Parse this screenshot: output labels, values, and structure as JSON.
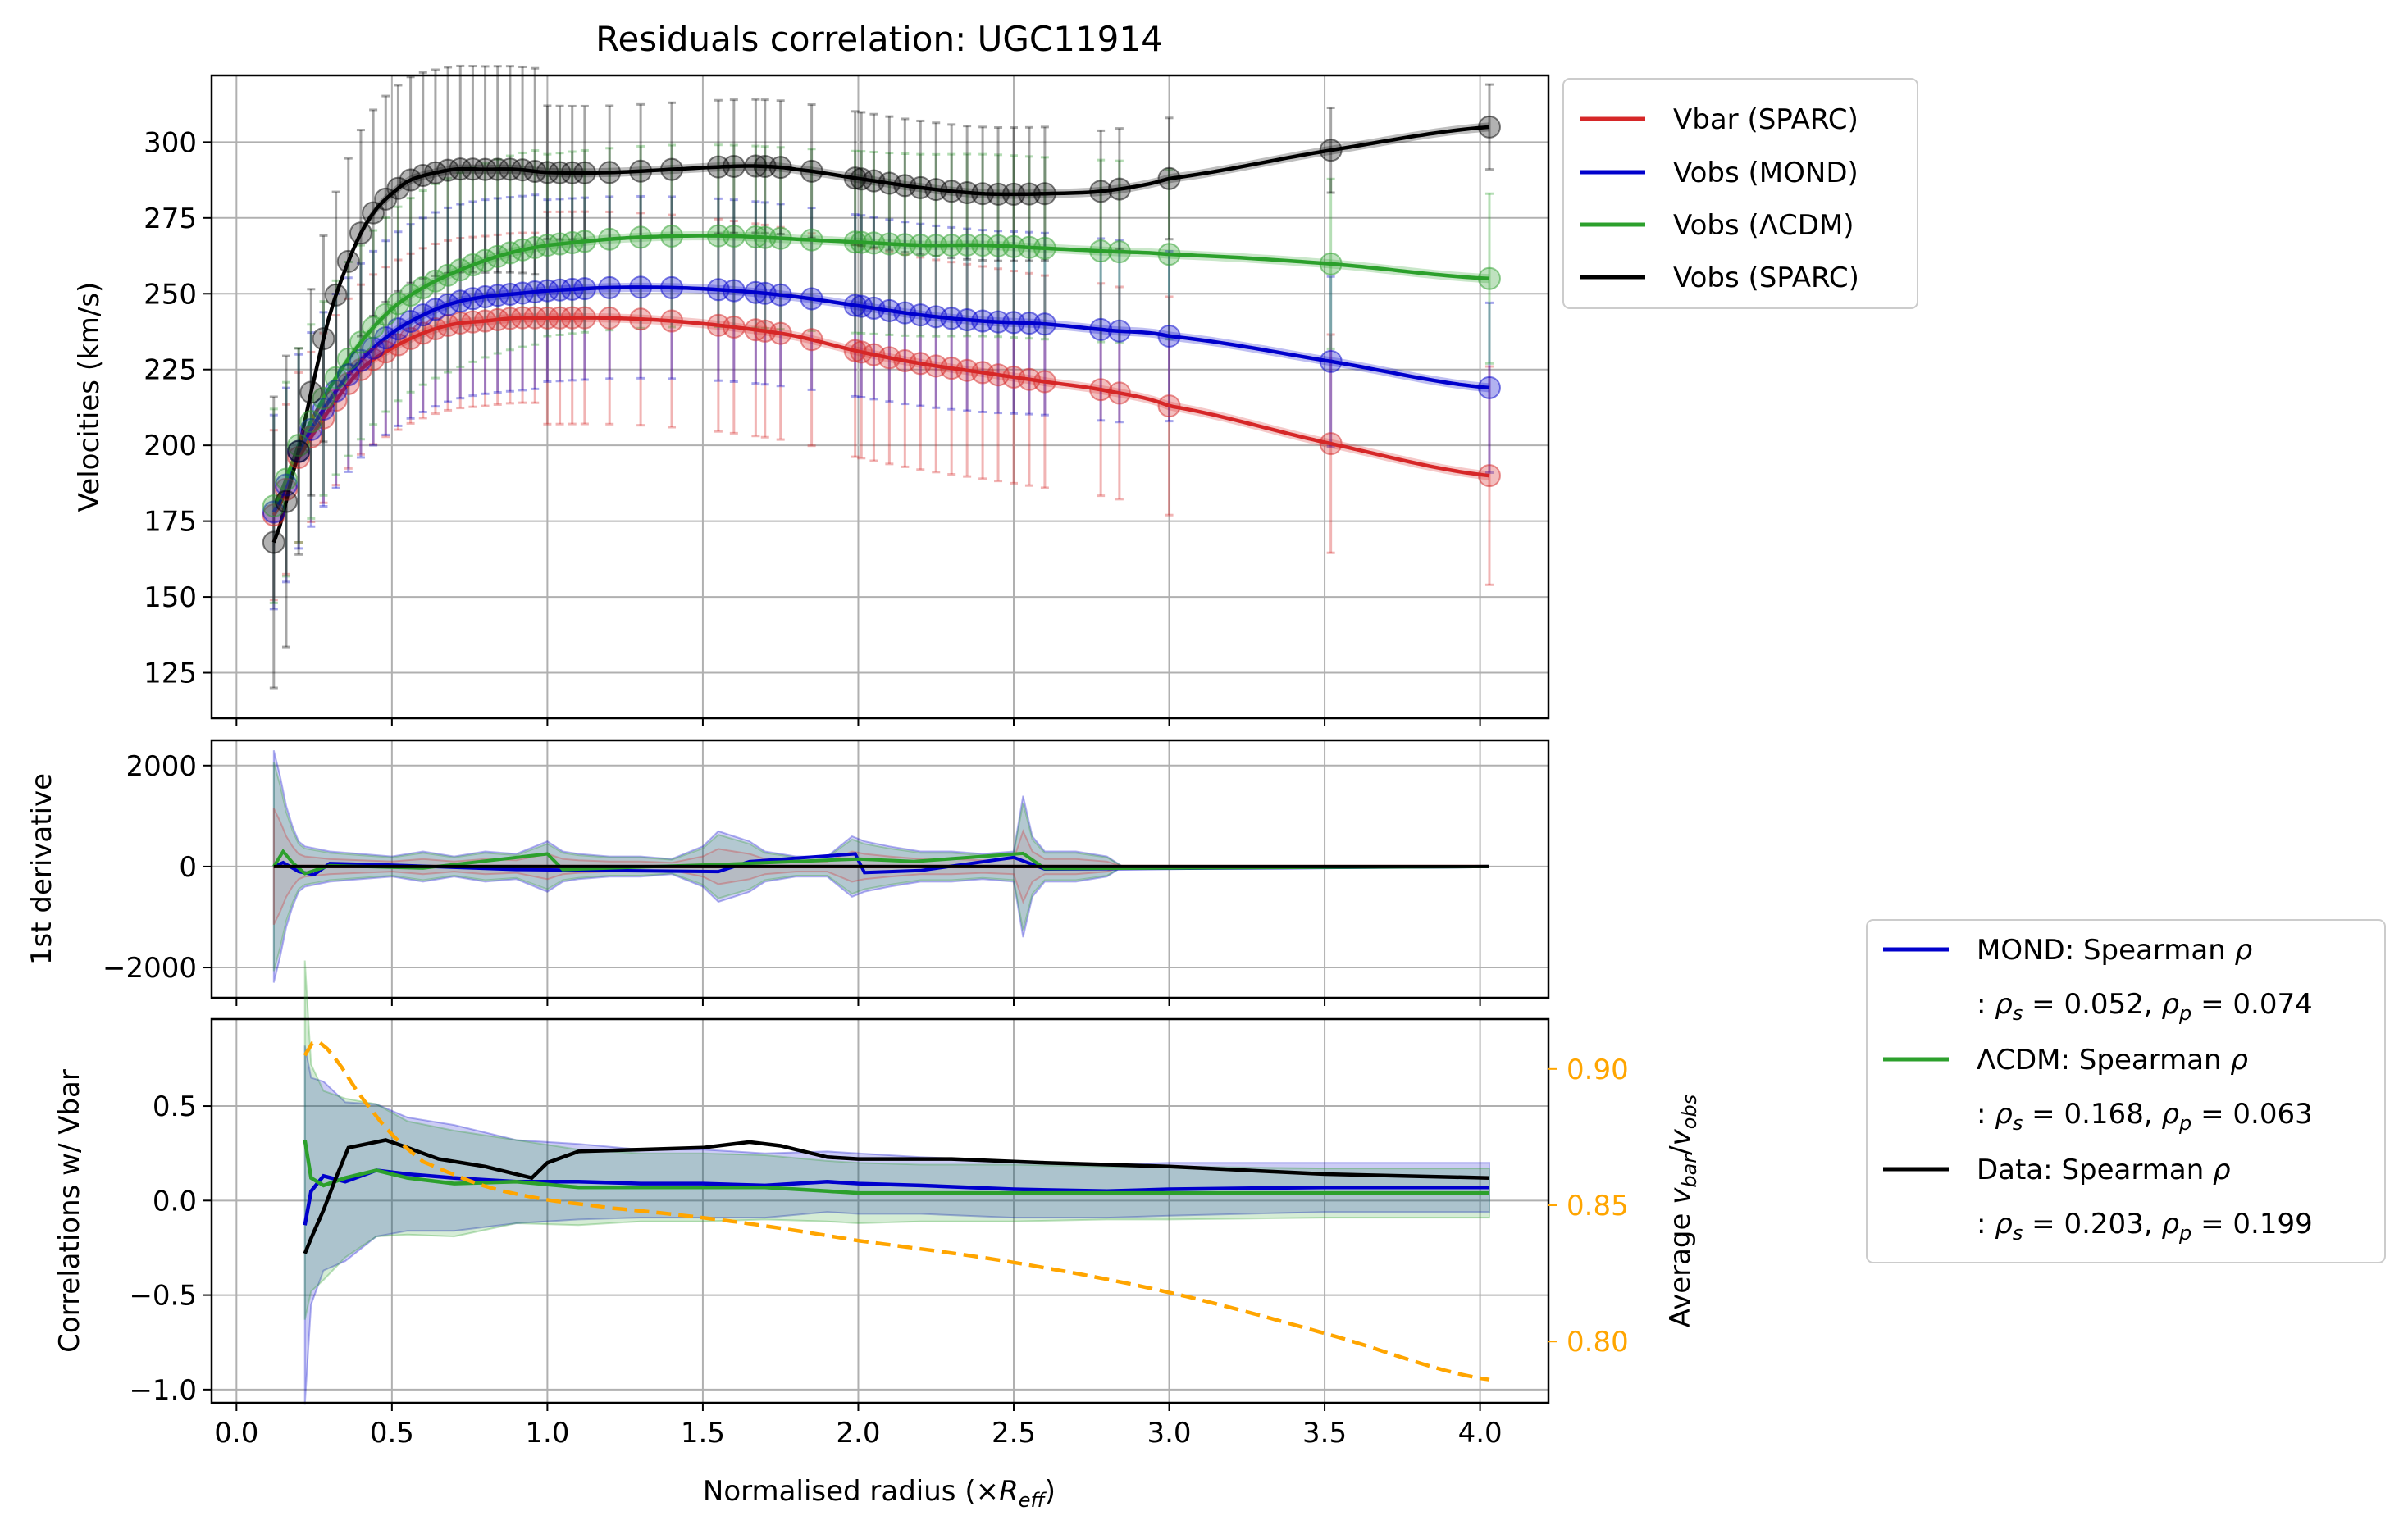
{
  "figure": {
    "title": "Residuals correlation: UGC11914",
    "xlabel": "Normalised radius (×",
    "xlabel_sym": "R",
    "xlabel_sub": "eff",
    "xlabel_close": ")"
  },
  "colors": {
    "vbar": "#d62728",
    "mond": "#0000cc",
    "lcdm": "#2ca02c",
    "data": "#000000",
    "ratio": "#ffa500",
    "grid": "#b0b0b0"
  },
  "panels": {
    "top": {
      "ylabel": "Velocities (km/s)",
      "ylim": [
        110,
        322
      ],
      "yticks": [
        125,
        150,
        175,
        200,
        225,
        250,
        275,
        300
      ],
      "ytick_labels": [
        "125",
        "150",
        "175",
        "200",
        "225",
        "250",
        "275",
        "300"
      ]
    },
    "middle": {
      "ylabel": "1st derivative",
      "ylim": [
        -2600,
        2500
      ],
      "yticks": [
        -2000,
        0,
        2000
      ],
      "ytick_labels": [
        "−2000",
        "0",
        "2000"
      ]
    },
    "bottom": {
      "ylabel": "Correlations w/ Vbar",
      "ylim": [
        -1.07,
        0.96
      ],
      "yticks": [
        -1.0,
        -0.5,
        0.0,
        0.5
      ],
      "ytick_labels": [
        "−1.0",
        "−0.5",
        "0.0",
        "0.5"
      ],
      "y2label_prefix": "Average ",
      "y2label_math": "v",
      "y2label_sub1": "bar",
      "y2label_slash": "/",
      "y2label_sub2": "obs",
      "y2lim": [
        0.7775,
        0.9183
      ],
      "y2ticks": [
        0.8,
        0.85,
        0.9
      ],
      "y2tick_labels": [
        "0.80",
        "0.85",
        "0.90"
      ]
    },
    "x": {
      "xlim": [
        -0.08,
        4.22
      ],
      "xticks": [
        0.0,
        0.5,
        1.0,
        1.5,
        2.0,
        2.5,
        3.0,
        3.5,
        4.0
      ],
      "xtick_labels": [
        "0.0",
        "0.5",
        "1.0",
        "1.5",
        "2.0",
        "2.5",
        "3.0",
        "3.5",
        "4.0"
      ]
    }
  },
  "legend_top": [
    {
      "label": "Vbar (SPARC)",
      "color": "#d62728"
    },
    {
      "label": "Vobs (MOND)",
      "color": "#0000cc"
    },
    {
      "label": "Vobs (ΛCDM)",
      "color": "#2ca02c"
    },
    {
      "label": "Vobs (SPARC)",
      "color": "#000000"
    }
  ],
  "legend_bottom": [
    {
      "label": "MOND: Spearman",
      "color": "#0000cc",
      "rho_s": "0.052",
      "rho_p": "0.074"
    },
    {
      "label": "ΛCDM: Spearman",
      "color": "#2ca02c",
      "rho_s": "0.168",
      "rho_p": "0.063"
    },
    {
      "label": "Data: Spearman",
      "color": "#000000",
      "rho_s": "0.203",
      "rho_p": "0.199"
    }
  ],
  "chart_data": [
    {
      "type": "line",
      "title": "Residuals correlation: UGC11914",
      "ylabel": "Velocities (km/s)",
      "ylim": [
        110,
        322
      ],
      "grid": true,
      "legend": "outside-right",
      "series": [
        {
          "name": "Vbar (SPARC)",
          "x": [
            0.12,
            0.2,
            0.3,
            0.4,
            0.5,
            0.6,
            0.7,
            0.8,
            0.9,
            1.0,
            1.2,
            1.4,
            1.6,
            1.8,
            2.0,
            2.2,
            2.4,
            2.6,
            2.8,
            3.0,
            3.5,
            4.03
          ],
          "y": [
            177,
            196,
            212,
            225,
            232,
            237,
            240,
            241,
            242,
            242,
            242,
            241,
            239,
            236,
            231,
            227,
            224,
            221,
            218,
            213,
            201,
            190
          ]
        },
        {
          "name": "Vobs (MOND)",
          "x": [
            0.12,
            0.2,
            0.3,
            0.4,
            0.5,
            0.6,
            0.7,
            0.8,
            0.9,
            1.0,
            1.2,
            1.4,
            1.6,
            1.8,
            2.0,
            2.2,
            2.4,
            2.6,
            2.8,
            3.0,
            3.5,
            4.03
          ],
          "y": [
            178,
            198,
            215,
            228,
            237,
            243,
            247,
            249,
            250,
            251,
            252,
            252,
            251,
            249,
            246,
            243,
            241,
            240,
            238,
            236,
            228,
            219
          ]
        },
        {
          "name": "Vobs (ΛCDM)",
          "x": [
            0.12,
            0.2,
            0.3,
            0.4,
            0.5,
            0.6,
            0.7,
            0.8,
            0.9,
            1.0,
            1.2,
            1.4,
            1.6,
            1.8,
            2.0,
            2.2,
            2.4,
            2.6,
            2.8,
            3.0,
            3.5,
            4.03
          ],
          "y": [
            180,
            200,
            219,
            234,
            245,
            252,
            257,
            261,
            264,
            266,
            268,
            269,
            269,
            268,
            267,
            266,
            266,
            265,
            264,
            263,
            260,
            255
          ]
        },
        {
          "name": "Vobs (SPARC)",
          "x": [
            0.12,
            0.2,
            0.25,
            0.3,
            0.35,
            0.4,
            0.45,
            0.5,
            0.55,
            0.6,
            0.7,
            0.8,
            0.9,
            1.0,
            1.2,
            1.4,
            1.6,
            1.7,
            1.8,
            2.0,
            2.2,
            2.4,
            2.6,
            2.8,
            3.0,
            3.5,
            4.03
          ],
          "y": [
            168,
            198,
            222,
            243,
            258,
            270,
            278,
            283,
            287,
            289,
            291,
            291,
            291,
            290,
            290,
            291,
            292,
            292,
            291,
            288,
            285,
            283,
            283,
            284,
            288,
            297,
            305
          ]
        }
      ]
    },
    {
      "type": "line",
      "ylabel": "1st derivative",
      "ylim": [
        -2600,
        2500
      ],
      "grid": true,
      "series": [
        {
          "name": "Vbar (SPARC)",
          "x": [
            0.12,
            0.2,
            0.4,
            0.8,
            1.2,
            1.6,
            2.0,
            2.4,
            2.6,
            3.0,
            4.03
          ],
          "y": [
            0,
            0,
            0,
            0,
            0,
            0,
            0,
            0,
            0,
            0,
            0
          ]
        },
        {
          "name": "Vobs (MOND)",
          "x": [
            0.12,
            0.15,
            0.2,
            0.25,
            0.3,
            0.5,
            0.9,
            1.55,
            1.65,
            1.99,
            2.02,
            2.2,
            2.5,
            2.6,
            4.03
          ],
          "y": [
            0,
            80,
            -100,
            -160,
            60,
            30,
            -60,
            -100,
            100,
            250,
            -120,
            -80,
            180,
            -50,
            0
          ]
        },
        {
          "name": "Vobs (ΛCDM)",
          "x": [
            0.12,
            0.15,
            0.18,
            0.22,
            0.3,
            0.6,
            1.0,
            1.05,
            1.6,
            2.0,
            2.18,
            2.53,
            2.6,
            4.03
          ],
          "y": [
            0,
            300,
            80,
            -140,
            20,
            -30,
            250,
            -60,
            50,
            150,
            100,
            260,
            -40,
            0
          ]
        },
        {
          "name": "Vobs (SPARC)",
          "x": [
            0.12,
            4.03
          ],
          "y": [
            0,
            0
          ]
        }
      ]
    },
    {
      "type": "line",
      "ylabel": "Correlations w/ Vbar",
      "ylim": [
        -1.07,
        0.96
      ],
      "xlabel": "Normalised radius (×R_eff)",
      "grid": true,
      "legend": "outside-right",
      "series": [
        {
          "name": "MOND: Spearman",
          "x": [
            0.22,
            0.24,
            0.28,
            0.35,
            0.45,
            0.55,
            0.7,
            0.9,
            1.1,
            1.3,
            1.5,
            1.7,
            1.9,
            2.0,
            2.2,
            2.5,
            2.8,
            3.0,
            3.5,
            4.03
          ],
          "y": [
            -0.13,
            0.05,
            0.13,
            0.1,
            0.16,
            0.14,
            0.12,
            0.1,
            0.1,
            0.09,
            0.09,
            0.08,
            0.1,
            0.09,
            0.08,
            0.06,
            0.05,
            0.06,
            0.07,
            0.07
          ]
        },
        {
          "name": "ΛCDM: Spearman",
          "x": [
            0.22,
            0.24,
            0.28,
            0.35,
            0.45,
            0.55,
            0.7,
            0.9,
            1.1,
            1.3,
            1.5,
            1.7,
            1.9,
            2.0,
            2.2,
            2.5,
            2.8,
            3.0,
            3.5,
            4.03
          ],
          "y": [
            0.32,
            0.12,
            0.08,
            0.12,
            0.16,
            0.12,
            0.09,
            0.1,
            0.07,
            0.07,
            0.07,
            0.07,
            0.05,
            0.04,
            0.04,
            0.04,
            0.04,
            0.04,
            0.04,
            0.04
          ]
        },
        {
          "name": "Data: Spearman",
          "x": [
            0.22,
            0.24,
            0.28,
            0.32,
            0.36,
            0.42,
            0.48,
            0.55,
            0.65,
            0.8,
            0.95,
            1.0,
            1.1,
            1.3,
            1.5,
            1.65,
            1.75,
            1.9,
            2.0,
            2.3,
            2.6,
            2.8,
            3.0,
            3.5,
            4.03
          ],
          "y": [
            -0.28,
            -0.2,
            -0.05,
            0.12,
            0.28,
            0.3,
            0.32,
            0.28,
            0.22,
            0.18,
            0.12,
            0.2,
            0.26,
            0.27,
            0.28,
            0.31,
            0.29,
            0.23,
            0.22,
            0.22,
            0.2,
            0.19,
            0.18,
            0.14,
            0.12
          ]
        },
        {
          "name": "Average v_bar/v_obs",
          "axis": "right",
          "ylim": [
            0.7775,
            0.9183
          ],
          "x": [
            0.22,
            0.25,
            0.3,
            0.4,
            0.5,
            0.6,
            0.8,
            1.0,
            1.2,
            1.6,
            2.0,
            2.5,
            3.0,
            3.5,
            4.03
          ],
          "y": [
            0.905,
            0.91,
            0.906,
            0.89,
            0.876,
            0.866,
            0.857,
            0.852,
            0.849,
            0.844,
            0.837,
            0.829,
            0.818,
            0.803,
            0.786
          ]
        }
      ]
    }
  ]
}
